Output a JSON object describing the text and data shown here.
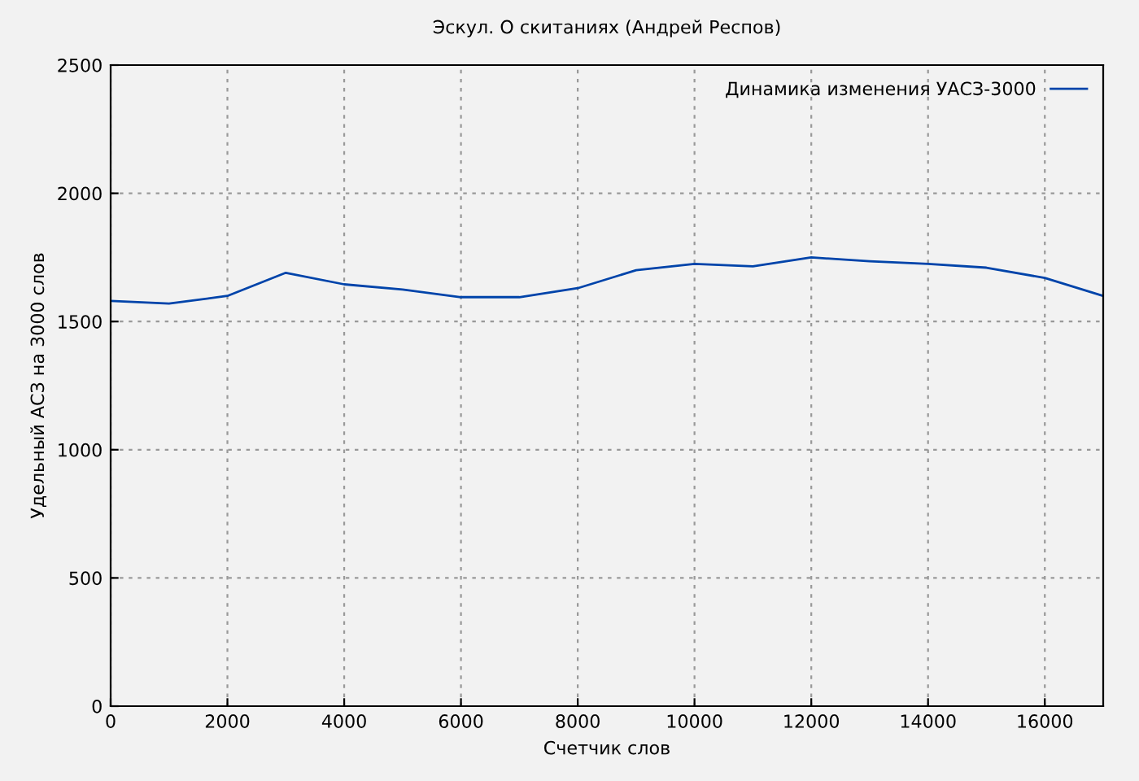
{
  "chart_data": {
    "type": "line",
    "title": "Эскул. О скитаниях (Андрей Респов)",
    "xlabel": "Счетчик слов",
    "ylabel": "Удельный АСЗ на 3000 слов",
    "x": [
      0,
      1000,
      2000,
      3000,
      4000,
      5000,
      6000,
      7000,
      8000,
      9000,
      10000,
      11000,
      12000,
      13000,
      14000,
      15000,
      16000,
      17000
    ],
    "series": [
      {
        "name": "Динамика изменения УАСЗ-3000",
        "color": "#0044aa",
        "values": [
          1580,
          1570,
          1600,
          1690,
          1645,
          1625,
          1595,
          1595,
          1630,
          1700,
          1725,
          1715,
          1750,
          1735,
          1725,
          1710,
          1670,
          1600
        ]
      }
    ],
    "xlim": [
      0,
      17000
    ],
    "xticks": [
      0,
      2000,
      4000,
      6000,
      8000,
      10000,
      12000,
      14000,
      16000
    ],
    "ylim": [
      0,
      2500
    ],
    "yticks": [
      0,
      500,
      1000,
      1500,
      2000,
      2500
    ],
    "grid": true,
    "legend": "top right",
    "marker": "none",
    "line_style": "solid"
  }
}
